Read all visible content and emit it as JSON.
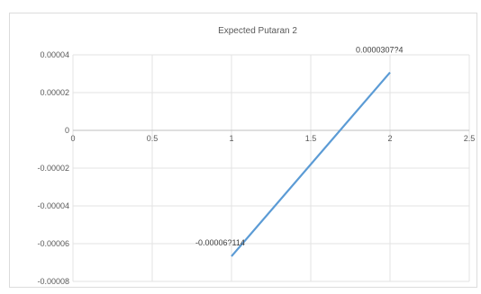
{
  "chart_data": {
    "type": "line",
    "title": "Expected Putaran 2",
    "xlabel": "",
    "ylabel": "",
    "xlim": [
      0,
      2.5
    ],
    "ylim": [
      -8e-05,
      4e-05
    ],
    "x_ticks": [
      0,
      0.5,
      1,
      1.5,
      2,
      2.5
    ],
    "x_tick_labels": [
      "0",
      "0.5",
      "1",
      "1.5",
      "2",
      "2.5"
    ],
    "y_ticks": [
      4e-05,
      2e-05,
      0,
      -2e-05,
      -4e-05,
      -6e-05,
      -8e-05
    ],
    "y_tick_labels": [
      "0.00004",
      "0.00002",
      "0",
      "-0.00002",
      "-0.00004",
      "-0.00006",
      "-0.00008"
    ],
    "grid": true,
    "legend": "none",
    "series": [
      {
        "color": "#5b9bd5",
        "points": [
          {
            "x": 1,
            "y": -6.67e-05,
            "label": "-0.00006?114"
          },
          {
            "x": 2,
            "y": 3.07e-05,
            "label": "0.0000307?4"
          }
        ]
      }
    ]
  }
}
